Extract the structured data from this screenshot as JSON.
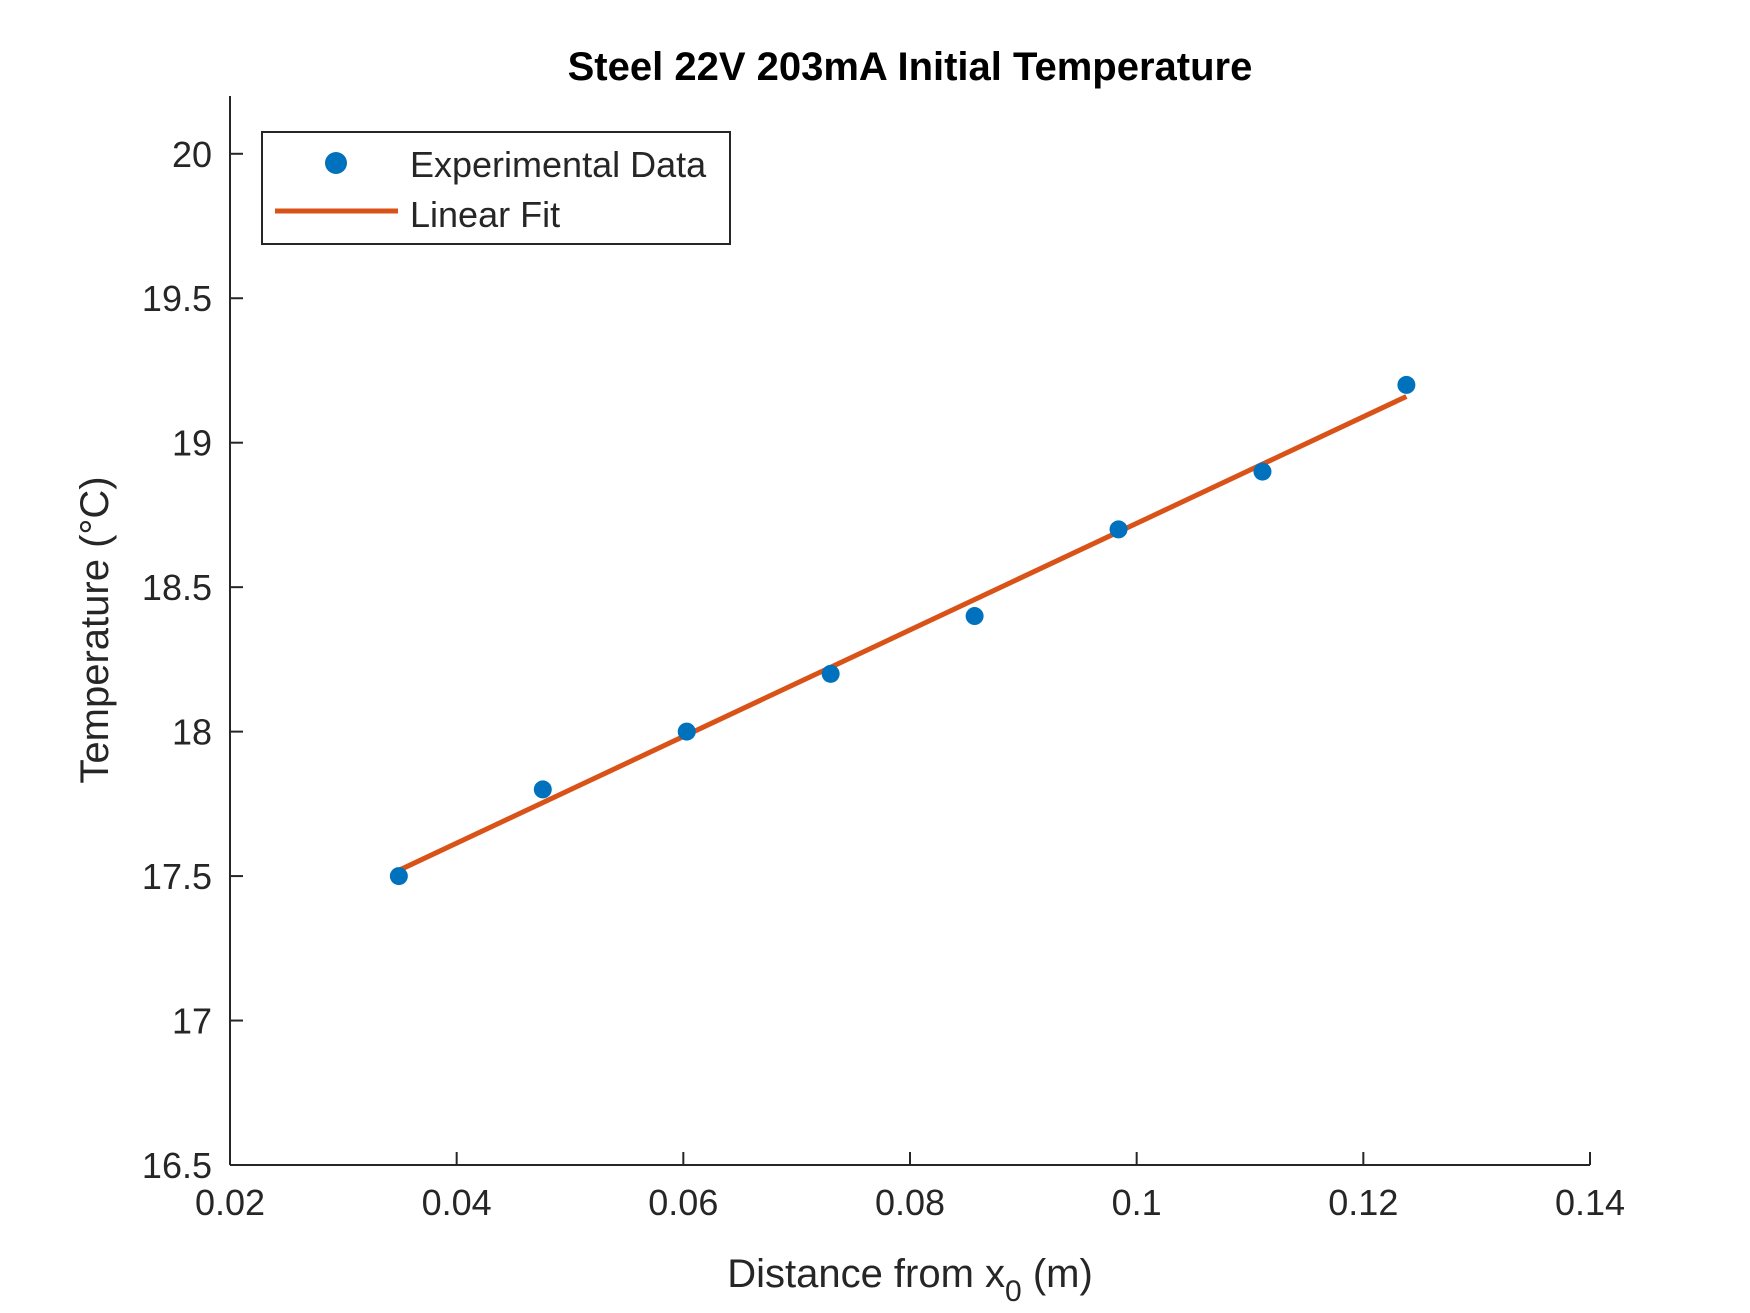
{
  "chart_data": {
    "type": "scatter",
    "title": "Steel 22V 203mA Initial Temperature",
    "xlabel_main": "Distance from x",
    "xlabel_sub": "0",
    "xlabel_tail": " (m)",
    "ylabel": "Temperature (°C)",
    "xlim": [
      0.02,
      0.14
    ],
    "ylim": [
      16.5,
      20.2
    ],
    "xticks": [
      0.02,
      0.04,
      0.06,
      0.08,
      0.1,
      0.12,
      0.14
    ],
    "xtick_labels": [
      "0.02",
      "0.04",
      "0.06",
      "0.08",
      "0.1",
      "0.12",
      "0.14"
    ],
    "yticks": [
      16.5,
      17,
      17.5,
      18,
      18.5,
      19,
      19.5,
      20
    ],
    "ytick_labels": [
      "16.5",
      "17",
      "17.5",
      "18",
      "18.5",
      "19",
      "19.5",
      "20"
    ],
    "grid": false,
    "legend_position": "top-left",
    "series": [
      {
        "name": "Experimental Data",
        "kind": "markers",
        "color": "#0072BD",
        "x": [
          0.0349,
          0.0476,
          0.0603,
          0.073,
          0.0857,
          0.0984,
          0.1111,
          0.1238
        ],
        "y": [
          17.5,
          17.8,
          18.0,
          18.2,
          18.4,
          18.7,
          18.9,
          19.2
        ]
      },
      {
        "name": "Linear Fit",
        "kind": "line",
        "color": "#D95319",
        "x": [
          0.0349,
          0.1238
        ],
        "y": [
          17.52,
          19.16
        ]
      }
    ]
  }
}
